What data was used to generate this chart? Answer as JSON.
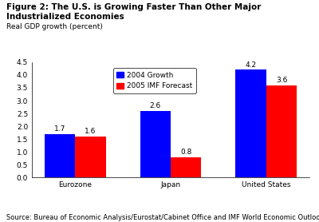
{
  "title": "Figure 2: The U.S. is Growing Faster Than Other Major Industrialized Economies",
  "subtitle": "Real GDP growth (percent)",
  "categories": [
    "Eurozone",
    "Japan",
    "United States"
  ],
  "series": [
    {
      "label": "2004 Growth",
      "color": "#0000FF",
      "values": [
        1.7,
        2.6,
        4.2
      ]
    },
    {
      "label": "2005 IMF Forecast",
      "color": "#FF0000",
      "values": [
        1.6,
        0.8,
        3.6
      ]
    }
  ],
  "ylim": [
    0.0,
    4.5
  ],
  "yticks": [
    0.0,
    0.5,
    1.0,
    1.5,
    2.0,
    2.5,
    3.0,
    3.5,
    4.0,
    4.5
  ],
  "source": "Source: Bureau of Economic Analysis/Eurostat/Cabinet Office and IMF World Economic Outlook",
  "bar_width": 0.32,
  "background_color": "#FFFFFF",
  "title_fontsize": 7.5,
  "subtitle_fontsize": 6.5,
  "value_label_fontsize": 6.5,
  "tick_fontsize": 6.5,
  "source_fontsize": 6.0,
  "legend_fontsize": 6.5
}
